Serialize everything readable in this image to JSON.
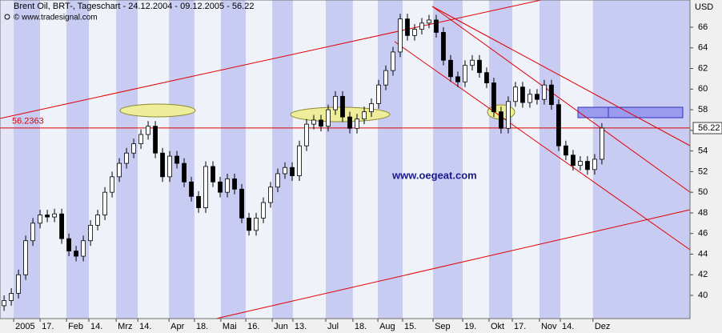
{
  "chart_data": {
    "type": "candlestick",
    "title": "Brent Oil, BRT-, Tageschart - 24.12.2004 - 09.12.2005 - 56.22",
    "subtitle": "© www.tradesignal.com",
    "y_label": "USD",
    "watermark": "www.oegeat.com",
    "hline": 56.2363,
    "up_color": "#ffffff",
    "down_color": "#000000",
    "hline_color": "#e00000",
    "xlim": [
      -1.7,
      285.7
    ],
    "xticks": [
      {
        "value": 4,
        "label": "2005"
      },
      {
        "value": 15,
        "label": "17."
      },
      {
        "value": 26,
        "label": "Feb"
      },
      {
        "value": 35.3,
        "label": "14."
      },
      {
        "value": 46.7,
        "label": "Mrz"
      },
      {
        "value": 55.7,
        "label": "14."
      },
      {
        "value": 68.7,
        "label": "Apr"
      },
      {
        "value": 79.3,
        "label": "18."
      },
      {
        "value": 90.3,
        "label": "Mai"
      },
      {
        "value": 100.7,
        "label": "16."
      },
      {
        "value": 111.7,
        "label": "Jun"
      },
      {
        "value": 120.3,
        "label": "13."
      },
      {
        "value": 134,
        "label": "Jul"
      },
      {
        "value": 145.3,
        "label": "18."
      },
      {
        "value": 155.7,
        "label": "Aug"
      },
      {
        "value": 166,
        "label": "15."
      },
      {
        "value": 178.7,
        "label": "Sep"
      },
      {
        "value": 191,
        "label": "19."
      },
      {
        "value": 202,
        "label": "Okt"
      },
      {
        "value": 211.7,
        "label": "17."
      },
      {
        "value": 223,
        "label": "Nov"
      },
      {
        "value": 231.7,
        "label": "14."
      },
      {
        "value": 245.3,
        "label": "Dez"
      }
    ],
    "ylim": [
      37.75,
      68.64
    ],
    "yticks": [
      40,
      42,
      44,
      46,
      48,
      50,
      52,
      54,
      56,
      58,
      60,
      62,
      64,
      66
    ],
    "x": [
      0,
      3,
      6,
      9,
      12,
      15,
      18,
      21,
      24,
      27,
      30,
      33,
      36,
      39,
      42,
      45,
      48,
      51,
      54,
      57,
      60,
      63,
      66,
      69,
      72,
      75,
      78,
      81,
      84,
      87,
      90,
      93,
      96,
      99,
      102,
      105,
      108,
      111,
      114,
      117,
      120,
      123,
      126,
      129,
      132,
      135,
      138,
      141,
      144,
      147,
      150,
      153,
      156,
      159,
      162,
      165,
      168,
      171,
      174,
      177,
      180,
      183,
      186,
      189,
      192,
      195,
      198,
      201,
      204,
      207,
      210,
      213,
      216,
      219,
      222,
      225,
      228,
      231,
      234,
      237,
      240,
      243,
      246,
      249
    ],
    "open": [
      39.0,
      39.5,
      40.2,
      42,
      45.3,
      47,
      47.8,
      47.6,
      47.9,
      45.5,
      44.3,
      43.8,
      45.3,
      46.8,
      47.8,
      50,
      51.5,
      52.8,
      53.8,
      54.7,
      55.6,
      56.4,
      53.8,
      51.5,
      53.5,
      52.8,
      51,
      49.6,
      48.5,
      52.5,
      51,
      50,
      51.3,
      50.3,
      47.5,
      46.3,
      47.5,
      49,
      50.5,
      51.8,
      52.4,
      51.6,
      54.5,
      56.6,
      57,
      56.4,
      58,
      59.3,
      57.3,
      56.2,
      57.1,
      57.8,
      58.6,
      60.4,
      61.8,
      63.6,
      66.8,
      65.2,
      65.8,
      66.4,
      66.7,
      65.5,
      62.8,
      61.2,
      60.7,
      62.3,
      62.8,
      61.6,
      60.6,
      57.8,
      56.2,
      58.8,
      60.2,
      58.7,
      59.5,
      59,
      60.4,
      58.5,
      54.5,
      53.6,
      52.6,
      53,
      52.2,
      53.2
    ],
    "high": [
      40.0,
      40.7,
      42.5,
      45.8,
      47.5,
      48.3,
      48.3,
      48.4,
      48.4,
      46.0,
      44.8,
      45.8,
      47.3,
      48.3,
      50.5,
      52.0,
      53.3,
      54.3,
      55.2,
      56.1,
      56.9,
      56.9,
      54.3,
      54.0,
      54.0,
      53.3,
      51.5,
      50.1,
      53.0,
      53.0,
      51.5,
      51.8,
      51.8,
      50.8,
      48.0,
      48.0,
      49.5,
      51.0,
      52.3,
      52.9,
      52.9,
      55.0,
      57.1,
      57.5,
      57.5,
      58.5,
      59.8,
      59.8,
      57.8,
      57.6,
      58.3,
      59.1,
      60.9,
      62.3,
      64.1,
      67.3,
      67.3,
      66.3,
      66.9,
      67.2,
      67.2,
      66.0,
      63.3,
      61.7,
      62.8,
      63.3,
      63.3,
      62.1,
      61.1,
      58.3,
      59.3,
      60.7,
      60.7,
      60.0,
      60.0,
      60.9,
      60.9,
      59.0,
      55.0,
      54.1,
      53.5,
      53.5,
      53.7,
      56.7
    ],
    "low": [
      38.5,
      39.0,
      39.7,
      41.5,
      44.8,
      46.5,
      47.1,
      47.1,
      45.0,
      43.8,
      43.3,
      43.3,
      44.8,
      46.3,
      47.3,
      49.5,
      51.0,
      52.3,
      53.3,
      54.2,
      55.1,
      53.3,
      51.0,
      51.0,
      52.3,
      50.5,
      49.1,
      48.0,
      48.0,
      50.5,
      49.5,
      49.5,
      49.8,
      47.0,
      45.8,
      45.8,
      47.0,
      48.5,
      50.0,
      51.3,
      51.1,
      51.1,
      54.0,
      56.1,
      55.9,
      55.9,
      57.5,
      56.8,
      55.7,
      55.7,
      56.6,
      57.3,
      58.1,
      59.9,
      61.3,
      63.1,
      64.7,
      64.7,
      65.3,
      65.9,
      65.0,
      62.3,
      60.7,
      60.2,
      60.2,
      61.8,
      61.1,
      60.1,
      57.3,
      55.7,
      55.7,
      58.3,
      58.2,
      58.2,
      58.5,
      58.5,
      58.0,
      54.0,
      53.1,
      52.1,
      52.1,
      51.7,
      51.7,
      52.7
    ],
    "close": [
      39.5,
      40.2,
      42,
      45.3,
      47,
      47.8,
      47.6,
      47.9,
      45.5,
      44.3,
      43.8,
      45.3,
      46.8,
      47.8,
      50,
      51.5,
      52.8,
      53.8,
      54.7,
      55.6,
      56.4,
      53.8,
      51.5,
      53.5,
      52.8,
      51,
      49.6,
      48.5,
      52.5,
      51,
      50,
      51.3,
      50.3,
      47.5,
      46.3,
      47.5,
      49,
      50.5,
      51.8,
      52.4,
      51.6,
      54.5,
      56.6,
      57,
      56.4,
      58,
      59.3,
      57.3,
      56.2,
      57.1,
      57.8,
      58.6,
      60.4,
      61.8,
      63.6,
      66.8,
      65.2,
      65.8,
      66.4,
      66.7,
      65.5,
      62.8,
      61.2,
      60.7,
      62.3,
      62.8,
      61.6,
      60.6,
      57.8,
      56.2,
      58.8,
      60.2,
      58.7,
      59.5,
      59,
      60.4,
      58.5,
      54.5,
      53.6,
      52.6,
      53,
      52.2,
      53.2,
      56.22
    ]
  }
}
